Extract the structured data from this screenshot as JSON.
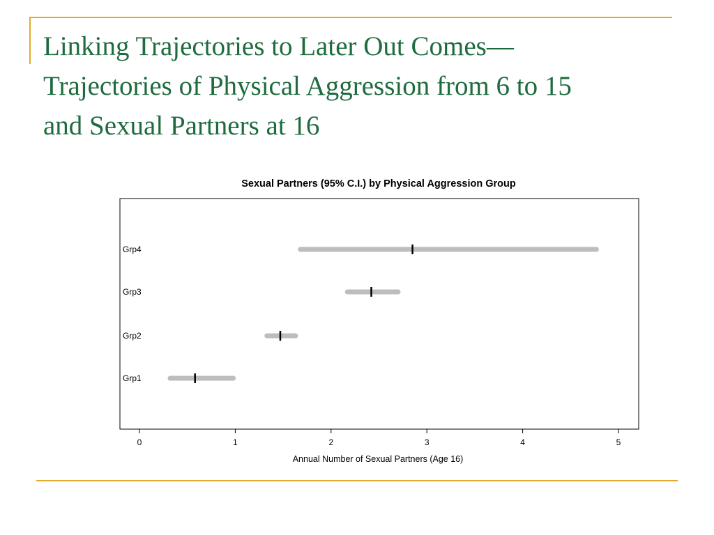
{
  "slide": {
    "title_lines": [
      "Linking Trajectories to Later Out Comes—",
      "Trajectories of Physical Aggression from 6 to 15",
      "and Sexual Partners at 16"
    ],
    "colors": {
      "title": "#1e6b3e",
      "rules": "#e5a92a",
      "ci_bar": "#bdbdbd",
      "estimate": "#000000"
    }
  },
  "chart_data": {
    "type": "interval",
    "title": "Sexual Partners (95% C.I.) by Physical Aggression Group",
    "xlabel": "Annual Number of Sexual Partners (Age 16)",
    "ylabel": "",
    "xlim": [
      0,
      5
    ],
    "xticks": [
      0,
      1,
      2,
      3,
      4,
      5
    ],
    "categories": [
      "Grp4",
      "Grp3",
      "Grp2",
      "Grp1"
    ],
    "series": [
      {
        "lower": [
          1.68,
          2.17,
          1.33,
          0.32
        ],
        "estimate": [
          2.85,
          2.42,
          1.47,
          0.58
        ],
        "upper": [
          4.77,
          2.7,
          1.63,
          0.98
        ]
      }
    ],
    "grid": false,
    "legend": "none"
  }
}
